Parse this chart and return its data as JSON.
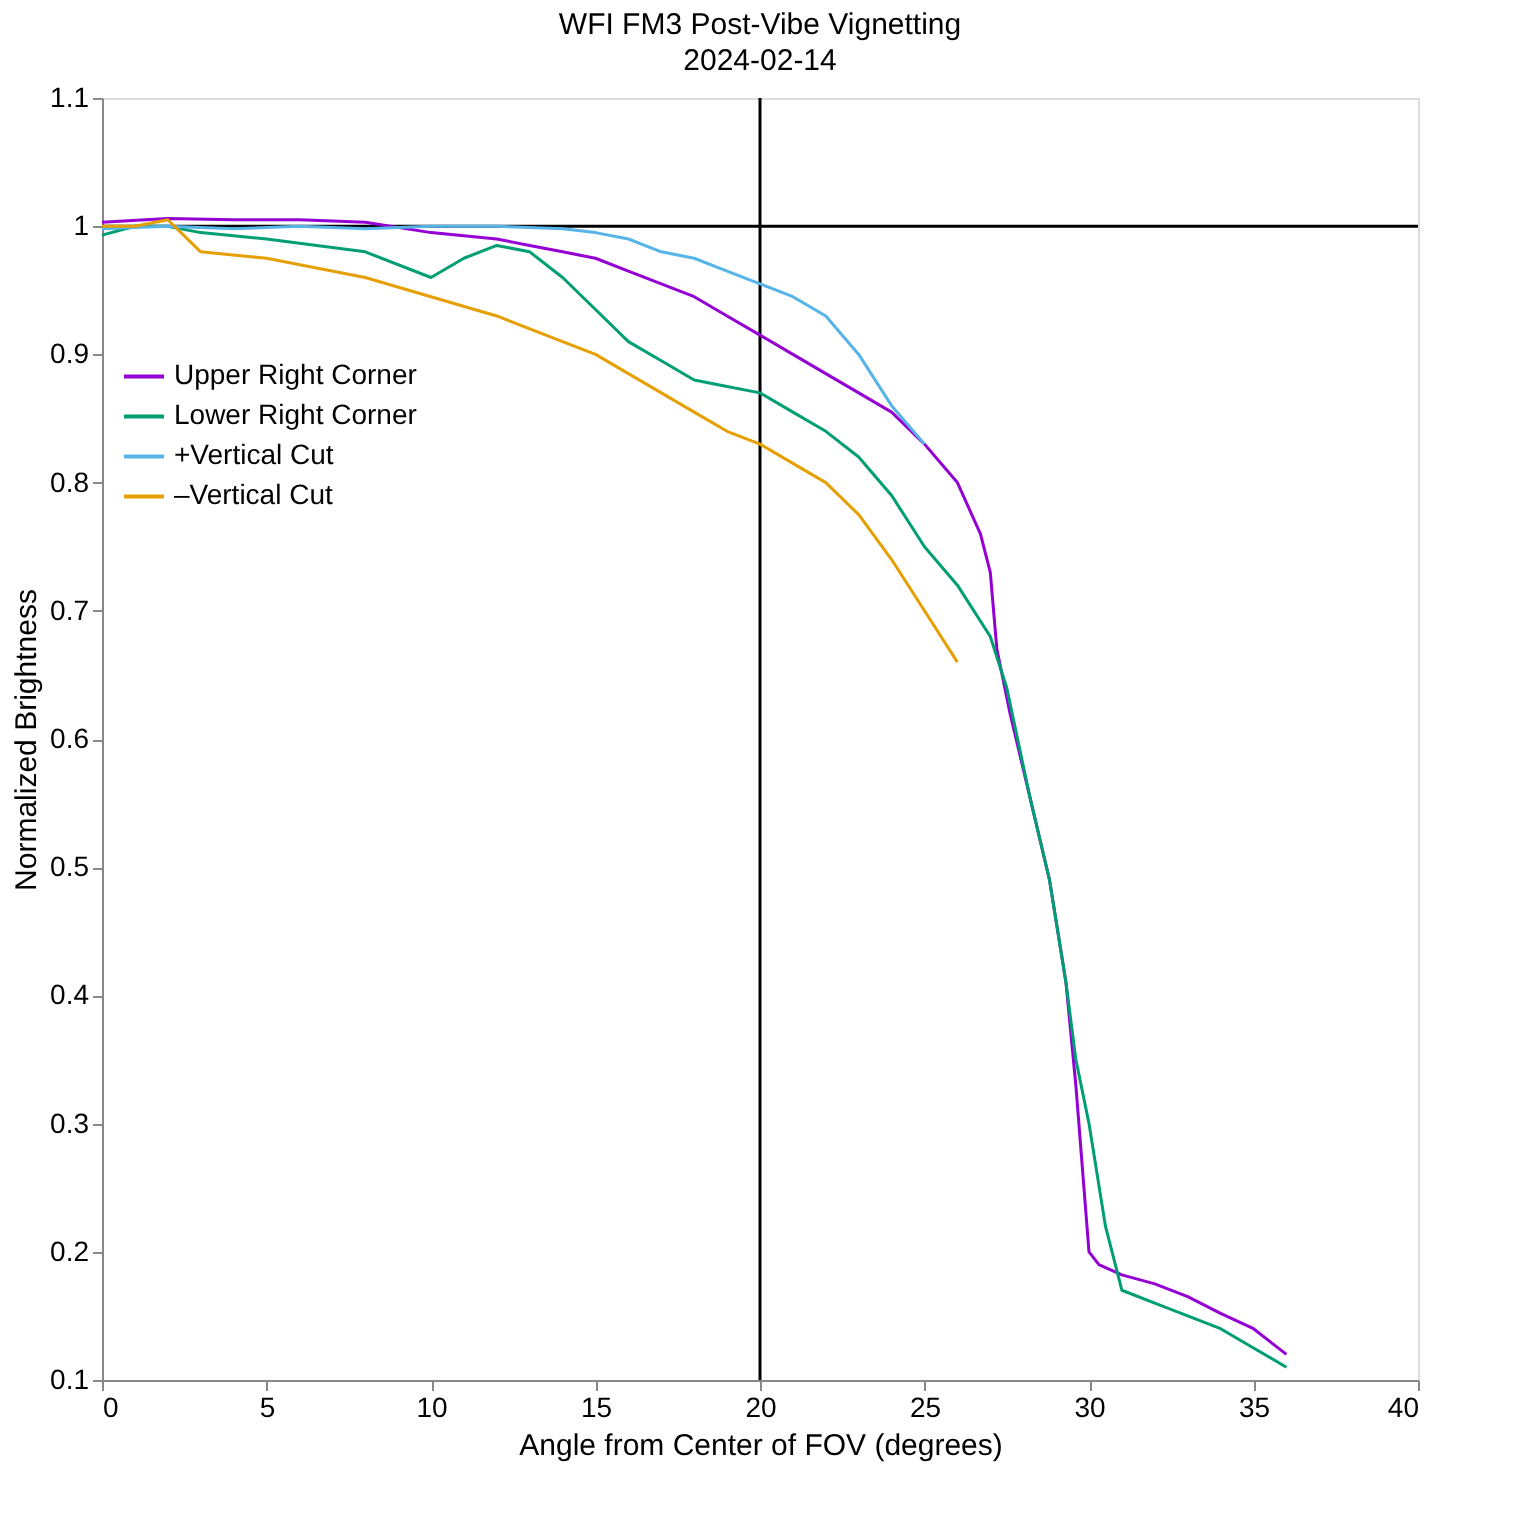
{
  "chart_data": {
    "type": "line",
    "title": "WFI FM3 Post-Vibe Vignetting",
    "subtitle": "2024-02-14",
    "xlabel": "Angle from Center of FOV (degrees)",
    "ylabel": "Normalized Brightness",
    "xlim": [
      0,
      40
    ],
    "xticks": [
      0,
      5,
      10,
      15,
      20,
      25,
      30,
      35,
      40
    ],
    "ylim": [
      0.1,
      1.1
    ],
    "yticks": [
      0.1,
      0.2,
      0.3,
      0.4,
      0.5,
      0.6,
      0.7,
      0.8,
      0.9,
      1,
      1.1
    ],
    "grid": false,
    "legend": "left",
    "marker": "none",
    "line_style": "solid",
    "ref_lines": [
      {
        "axis": "y",
        "value": 1,
        "color": "#000000"
      },
      {
        "axis": "x",
        "value": 20,
        "color": "#000000"
      }
    ],
    "series": [
      {
        "name": "Upper Right Corner",
        "color": "#9400d3",
        "x": [
          0,
          2,
          4,
          6,
          8,
          10,
          12,
          13,
          14,
          15,
          16,
          17,
          18,
          19,
          20,
          21,
          22,
          23,
          24,
          25,
          26,
          26.7,
          27,
          27.2,
          27.6,
          28.2,
          28.8,
          29.3,
          29.6,
          30,
          30.3,
          31,
          32,
          33,
          34,
          35,
          36
        ],
        "values": [
          1.003,
          1.006,
          1.005,
          1.005,
          1.003,
          0.995,
          0.99,
          0.985,
          0.98,
          0.975,
          0.965,
          0.955,
          0.945,
          0.93,
          0.915,
          0.9,
          0.885,
          0.87,
          0.855,
          0.83,
          0.8,
          0.76,
          0.73,
          0.67,
          0.62,
          0.555,
          0.49,
          0.41,
          0.33,
          0.2,
          0.19,
          0.182,
          0.175,
          0.165,
          0.152,
          0.14,
          0.12
        ]
      },
      {
        "name": "Lower Right Corner",
        "color": "#009e73",
        "x": [
          0,
          1,
          2,
          3,
          5,
          8,
          10,
          11,
          12,
          13,
          14,
          15,
          16,
          17,
          18,
          19,
          20,
          21,
          22,
          23,
          24,
          25,
          26,
          27,
          27.5,
          28.2,
          28.8,
          29.3,
          29.6,
          30,
          30.5,
          31,
          32,
          33,
          34,
          35,
          36
        ],
        "values": [
          0.993,
          1,
          1,
          0.995,
          0.99,
          0.98,
          0.96,
          0.975,
          0.985,
          0.98,
          0.96,
          0.935,
          0.91,
          0.895,
          0.88,
          0.875,
          0.87,
          0.855,
          0.84,
          0.82,
          0.79,
          0.75,
          0.72,
          0.68,
          0.64,
          0.555,
          0.49,
          0.41,
          0.35,
          0.3,
          0.22,
          0.17,
          0.16,
          0.15,
          0.14,
          0.125,
          0.11
        ]
      },
      {
        "name": "+Vertical Cut",
        "color": "#56b4e9",
        "x": [
          0,
          2,
          4,
          6,
          8,
          10,
          12,
          14,
          15,
          16,
          17,
          18,
          19,
          20,
          21,
          22,
          23,
          24,
          25
        ],
        "values": [
          0.998,
          1,
          0.998,
          1,
          0.998,
          1,
          1,
          0.998,
          0.995,
          0.99,
          0.98,
          0.975,
          0.965,
          0.955,
          0.945,
          0.93,
          0.9,
          0.86,
          0.83
        ]
      },
      {
        "name": "–Vertical Cut",
        "color": "#e69f00",
        "x": [
          0,
          1,
          2,
          3,
          5,
          8,
          10,
          12,
          14,
          15,
          16,
          17,
          18,
          19,
          20,
          21,
          22,
          23,
          24,
          25,
          26
        ],
        "values": [
          1,
          1,
          1.005,
          0.98,
          0.975,
          0.96,
          0.945,
          0.93,
          0.91,
          0.9,
          0.885,
          0.87,
          0.855,
          0.84,
          0.83,
          0.815,
          0.8,
          0.775,
          0.74,
          0.7,
          0.66
        ]
      }
    ]
  }
}
